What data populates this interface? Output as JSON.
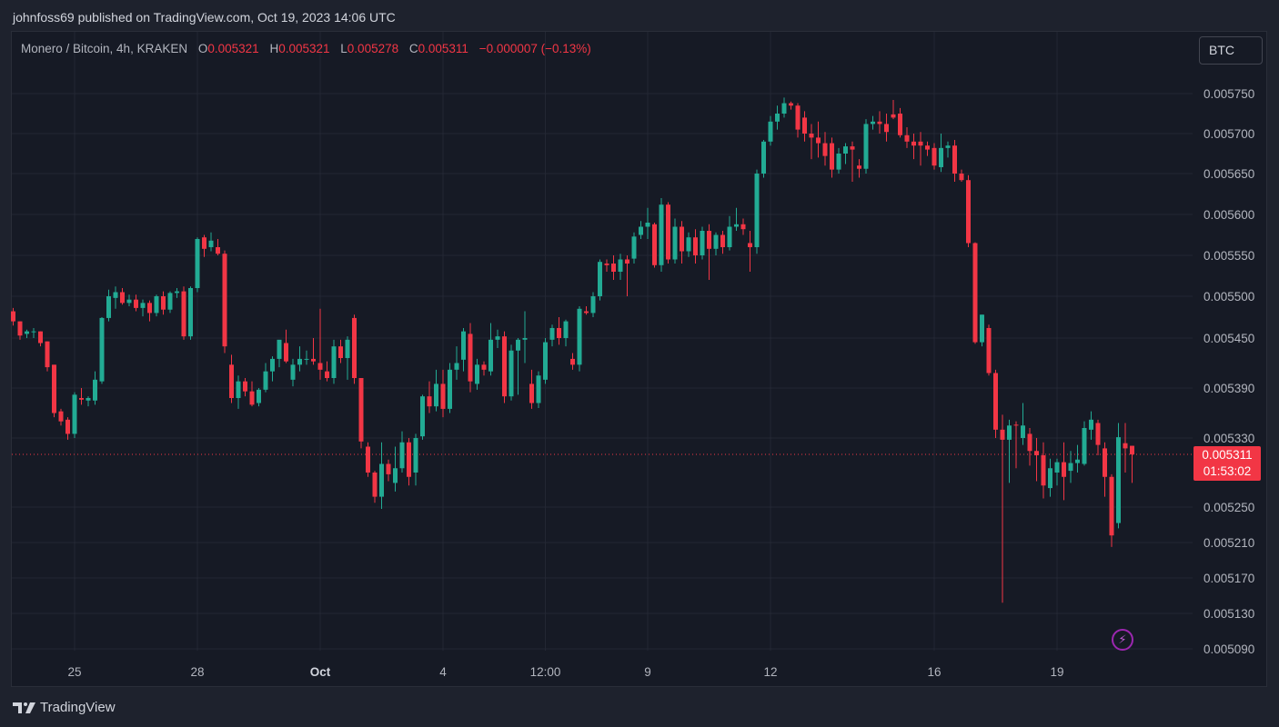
{
  "publisher_line": "johnfoss69 published on TradingView.com, Oct 19, 2023 14:06 UTC",
  "legend": {
    "symbol": "Monero / Bitcoin, 4h, KRAKEN",
    "open_label": "O",
    "open_value": "0.005321",
    "high_label": "H",
    "high_value": "0.005321",
    "low_label": "L",
    "low_value": "0.005278",
    "close_label": "C",
    "close_value": "0.005311",
    "change": "−0.000007 (−0.13%)"
  },
  "currency_chip": "BTC",
  "brand": "TradingView",
  "last_price": {
    "price": "0.005311",
    "countdown": "01:53:02"
  },
  "colors": {
    "up": "#22ab94",
    "down": "#f23645",
    "grid": "#232733",
    "text": "#b2b5be",
    "last_price_line": "#f23645",
    "flash": "#9c27b0"
  },
  "icons": {
    "flash": "lightning-icon",
    "brand_logo": "tradingview-logo-icon"
  },
  "chart_data": {
    "type": "candlestick",
    "timeframe": "4h",
    "y_ticks": [
      "0.005750",
      "0.005700",
      "0.005650",
      "0.005600",
      "0.005550",
      "0.005500",
      "0.005450",
      "0.005390",
      "0.005330",
      "0.005250",
      "0.005210",
      "0.005170",
      "0.005130",
      "0.005090"
    ],
    "x_ticks": [
      {
        "label": "25",
        "index": 9,
        "bold": false
      },
      {
        "label": "28",
        "index": 27,
        "bold": false
      },
      {
        "label": "Oct",
        "index": 45,
        "bold": true
      },
      {
        "label": "4",
        "index": 63,
        "bold": false
      },
      {
        "label": "12:00",
        "index": 78,
        "bold": false
      },
      {
        "label": "9",
        "index": 93,
        "bold": false
      },
      {
        "label": "12",
        "index": 111,
        "bold": false
      },
      {
        "label": "16",
        "index": 135,
        "bold": false
      },
      {
        "label": "19",
        "index": 153,
        "bold": false
      }
    ],
    "grid": true,
    "last_price": 0.005311,
    "candles": [
      [
        0.005482,
        0.005486,
        0.005465,
        0.00547
      ],
      [
        0.00547,
        0.00547,
        0.005448,
        0.005453
      ],
      [
        0.005455,
        0.00546,
        0.00545,
        0.005458
      ],
      [
        0.005458,
        0.005462,
        0.00545,
        0.005458
      ],
      [
        0.005458,
        0.005458,
        0.00544,
        0.005444
      ],
      [
        0.005446,
        0.005446,
        0.00541,
        0.005415
      ],
      [
        0.005418,
        0.005418,
        0.005355,
        0.00536
      ],
      [
        0.005362,
        0.005365,
        0.005345,
        0.00535
      ],
      [
        0.005352,
        0.005355,
        0.005328,
        0.005335
      ],
      [
        0.005335,
        0.005385,
        0.00533,
        0.005382
      ],
      [
        0.005378,
        0.00539,
        0.00537,
        0.005376
      ],
      [
        0.005375,
        0.00538,
        0.005368,
        0.005378
      ],
      [
        0.005375,
        0.00541,
        0.00537,
        0.0054
      ],
      [
        0.005398,
        0.005475,
        0.005395,
        0.005474
      ],
      [
        0.005474,
        0.005508,
        0.00547,
        0.0055
      ],
      [
        0.005498,
        0.005512,
        0.005485,
        0.005505
      ],
      [
        0.005505,
        0.00551,
        0.00549,
        0.005492
      ],
      [
        0.005492,
        0.005502,
        0.005488,
        0.005496
      ],
      [
        0.005496,
        0.005502,
        0.005482,
        0.005486
      ],
      [
        0.005486,
        0.005496,
        0.005476,
        0.005492
      ],
      [
        0.005492,
        0.005495,
        0.00547,
        0.00548
      ],
      [
        0.00548,
        0.005502,
        0.005476,
        0.0055
      ],
      [
        0.0055,
        0.005506,
        0.005478,
        0.005484
      ],
      [
        0.005484,
        0.005506,
        0.00548,
        0.005504
      ],
      [
        0.005504,
        0.00551,
        0.005498,
        0.005506
      ],
      [
        0.005506,
        0.005512,
        0.005448,
        0.005452
      ],
      [
        0.005452,
        0.005512,
        0.005448,
        0.00551
      ],
      [
        0.00551,
        0.005572,
        0.005505,
        0.00557
      ],
      [
        0.005572,
        0.005575,
        0.005548,
        0.005558
      ],
      [
        0.00556,
        0.005578,
        0.005555,
        0.005568
      ],
      [
        0.00556,
        0.00557,
        0.00555,
        0.005552
      ],
      [
        0.005552,
        0.005556,
        0.005432,
        0.00544
      ],
      [
        0.005418,
        0.00543,
        0.005372,
        0.005378
      ],
      [
        0.005378,
        0.005405,
        0.005365,
        0.005398
      ],
      [
        0.005398,
        0.005402,
        0.00538,
        0.005386
      ],
      [
        0.005386,
        0.005398,
        0.005368,
        0.00537
      ],
      [
        0.005372,
        0.00539,
        0.005368,
        0.005388
      ],
      [
        0.005388,
        0.00542,
        0.005385,
        0.00541
      ],
      [
        0.00541,
        0.005428,
        0.005398,
        0.005425
      ],
      [
        0.005425,
        0.005445,
        0.005415,
        0.005448
      ],
      [
        0.005444,
        0.00546,
        0.00542,
        0.005422
      ],
      [
        0.0054,
        0.005425,
        0.005392,
        0.005418
      ],
      [
        0.005418,
        0.00544,
        0.00541,
        0.005425
      ],
      [
        0.005425,
        0.005435,
        0.005418,
        0.005425
      ],
      [
        0.005425,
        0.00545,
        0.005418,
        0.005422
      ],
      [
        0.00542,
        0.005485,
        0.0054,
        0.005412
      ],
      [
        0.00541,
        0.005422,
        0.005398,
        0.005402
      ],
      [
        0.005402,
        0.005448,
        0.005395,
        0.00544
      ],
      [
        0.00544,
        0.005448,
        0.00542,
        0.005426
      ],
      [
        0.005426,
        0.005452,
        0.0054,
        0.005448
      ],
      [
        0.005474,
        0.005478,
        0.005395,
        0.005402
      ],
      [
        0.005402,
        0.005402,
        0.005318,
        0.005326
      ],
      [
        0.00532,
        0.005325,
        0.005285,
        0.00529
      ],
      [
        0.00529,
        0.005292,
        0.005255,
        0.005262
      ],
      [
        0.005262,
        0.005325,
        0.005248,
        0.0053
      ],
      [
        0.0053,
        0.005305,
        0.00528,
        0.005288
      ],
      [
        0.005278,
        0.00532,
        0.005268,
        0.005295
      ],
      [
        0.005295,
        0.005338,
        0.00529,
        0.005325
      ],
      [
        0.005325,
        0.00533,
        0.005275,
        0.005285
      ],
      [
        0.00529,
        0.005335,
        0.005275,
        0.00533
      ],
      [
        0.005332,
        0.005382,
        0.005328,
        0.00538
      ],
      [
        0.00538,
        0.005398,
        0.00536,
        0.005368
      ],
      [
        0.005368,
        0.005412,
        0.005362,
        0.005395
      ],
      [
        0.005395,
        0.005412,
        0.005355,
        0.005365
      ],
      [
        0.005365,
        0.00542,
        0.00536,
        0.005412
      ],
      [
        0.005412,
        0.00544,
        0.0054,
        0.00542
      ],
      [
        0.005424,
        0.005462,
        0.00541,
        0.005458
      ],
      [
        0.005455,
        0.005468,
        0.005385,
        0.005398
      ],
      [
        0.005395,
        0.005425,
        0.005388,
        0.005418
      ],
      [
        0.005418,
        0.005422,
        0.005405,
        0.005412
      ],
      [
        0.00541,
        0.005468,
        0.005405,
        0.005448
      ],
      [
        0.005448,
        0.00546,
        0.005438,
        0.005452
      ],
      [
        0.005452,
        0.005458,
        0.005372,
        0.00538
      ],
      [
        0.00538,
        0.005442,
        0.005375,
        0.005435
      ],
      [
        0.005435,
        0.00545,
        0.005382,
        0.005448
      ],
      [
        0.005448,
        0.005482,
        0.00542,
        0.00545
      ],
      [
        0.005395,
        0.005412,
        0.005365,
        0.005372
      ],
      [
        0.005372,
        0.00541,
        0.005366,
        0.005405
      ],
      [
        0.0054,
        0.00545,
        0.005395,
        0.005445
      ],
      [
        0.005448,
        0.005466,
        0.00544,
        0.005462
      ],
      [
        0.005462,
        0.005475,
        0.005442,
        0.00545
      ],
      [
        0.00545,
        0.005472,
        0.00544,
        0.00547
      ],
      [
        0.005425,
        0.005432,
        0.005412,
        0.005418
      ],
      [
        0.005418,
        0.005488,
        0.00541,
        0.005485
      ],
      [
        0.005482,
        0.005488,
        0.005478,
        0.00548
      ],
      [
        0.00548,
        0.005505,
        0.005475,
        0.0055
      ],
      [
        0.0055,
        0.005545,
        0.005495,
        0.005542
      ],
      [
        0.00554,
        0.005545,
        0.00553,
        0.005538
      ],
      [
        0.00554,
        0.00555,
        0.00552,
        0.00553
      ],
      [
        0.00553,
        0.005552,
        0.00552,
        0.005545
      ],
      [
        0.005545,
        0.00555,
        0.0055,
        0.00554
      ],
      [
        0.005546,
        0.005578,
        0.00554,
        0.005573
      ],
      [
        0.005575,
        0.005592,
        0.00557,
        0.005585
      ],
      [
        0.005585,
        0.005608,
        0.00557,
        0.00559
      ],
      [
        0.005588,
        0.00559,
        0.005535,
        0.005538
      ],
      [
        0.005538,
        0.00562,
        0.00553,
        0.005612
      ],
      [
        0.005612,
        0.005615,
        0.00554,
        0.005545
      ],
      [
        0.005545,
        0.005595,
        0.00554,
        0.005585
      ],
      [
        0.005585,
        0.005592,
        0.00554,
        0.005555
      ],
      [
        0.005555,
        0.005578,
        0.005548,
        0.005572
      ],
      [
        0.005572,
        0.005582,
        0.00554,
        0.00555
      ],
      [
        0.00555,
        0.005585,
        0.005545,
        0.00558
      ],
      [
        0.00558,
        0.005588,
        0.00552,
        0.005558
      ],
      [
        0.005558,
        0.005578,
        0.00555,
        0.005575
      ],
      [
        0.005575,
        0.00558,
        0.005552,
        0.00556
      ],
      [
        0.00556,
        0.005598,
        0.005556,
        0.005585
      ],
      [
        0.005585,
        0.005608,
        0.00558,
        0.005588
      ],
      [
        0.005588,
        0.005595,
        0.005575,
        0.005582
      ],
      [
        0.005565,
        0.00558,
        0.00553,
        0.00556
      ],
      [
        0.00556,
        0.005655,
        0.005552,
        0.00565
      ],
      [
        0.00565,
        0.005692,
        0.005645,
        0.00569
      ],
      [
        0.00569,
        0.005722,
        0.005685,
        0.005715
      ],
      [
        0.005715,
        0.005735,
        0.005705,
        0.005725
      ],
      [
        0.005725,
        0.005745,
        0.00572,
        0.005738
      ],
      [
        0.005738,
        0.00574,
        0.00573,
        0.005735
      ],
      [
        0.005735,
        0.005738,
        0.005695,
        0.005705
      ],
      [
        0.00572,
        0.005728,
        0.00569,
        0.0057
      ],
      [
        0.0057,
        0.005712,
        0.005668,
        0.005695
      ],
      [
        0.005695,
        0.005715,
        0.00567,
        0.005688
      ],
      [
        0.005688,
        0.005702,
        0.00566,
        0.005672
      ],
      [
        0.005688,
        0.005695,
        0.005645,
        0.005655
      ],
      [
        0.005655,
        0.005682,
        0.00565,
        0.005675
      ],
      [
        0.005675,
        0.005688,
        0.005662,
        0.005684
      ],
      [
        0.005684,
        0.00569,
        0.00564,
        0.00568
      ],
      [
        0.00566,
        0.005668,
        0.005645,
        0.005656
      ],
      [
        0.005656,
        0.005718,
        0.00565,
        0.005712
      ],
      [
        0.005712,
        0.005722,
        0.005705,
        0.005715
      ],
      [
        0.005715,
        0.005728,
        0.0057,
        0.005712
      ],
      [
        0.005712,
        0.005725,
        0.00569,
        0.005702
      ],
      [
        0.005724,
        0.005742,
        0.005718,
        0.00572
      ],
      [
        0.005725,
        0.005732,
        0.005695,
        0.005698
      ],
      [
        0.005698,
        0.005708,
        0.005682,
        0.00569
      ],
      [
        0.00569,
        0.0057,
        0.005668,
        0.005685
      ],
      [
        0.00569,
        0.005702,
        0.00566,
        0.005685
      ],
      [
        0.005685,
        0.00569,
        0.005672,
        0.00568
      ],
      [
        0.005682,
        0.005688,
        0.005655,
        0.00566
      ],
      [
        0.005658,
        0.0057,
        0.005652,
        0.005682
      ],
      [
        0.005682,
        0.00569,
        0.00567,
        0.005685
      ],
      [
        0.005685,
        0.005692,
        0.00564,
        0.00565
      ],
      [
        0.00565,
        0.005655,
        0.00564,
        0.005642
      ],
      [
        0.005642,
        0.005648,
        0.00556,
        0.005565
      ],
      [
        0.005565,
        0.005566,
        0.005443,
        0.005445
      ],
      [
        0.005445,
        0.005478,
        0.00544,
        0.005478
      ],
      [
        0.005462,
        0.005466,
        0.005405,
        0.005408
      ],
      [
        0.005408,
        0.005412,
        0.00533,
        0.00534
      ],
      [
        0.00534,
        0.005358,
        0.005142,
        0.005328
      ],
      [
        0.005328,
        0.005352,
        0.005278,
        0.005345
      ],
      [
        0.005346,
        0.00535,
        0.005295,
        0.005345
      ],
      [
        0.00533,
        0.005372,
        0.005322,
        0.005345
      ],
      [
        0.005335,
        0.005342,
        0.005298,
        0.005315
      ],
      [
        0.005315,
        0.00533,
        0.00528,
        0.00531
      ],
      [
        0.00531,
        0.005325,
        0.00526,
        0.005275
      ],
      [
        0.005272,
        0.005306,
        0.005262,
        0.005295
      ],
      [
        0.00529,
        0.005306,
        0.005275,
        0.005302
      ],
      [
        0.005302,
        0.005325,
        0.005258,
        0.005285
      ],
      [
        0.005292,
        0.005315,
        0.005278,
        0.005301
      ],
      [
        0.005301,
        0.005322,
        0.00529,
        0.005305
      ],
      [
        0.0053,
        0.00535,
        0.005298,
        0.005342
      ],
      [
        0.00534,
        0.005362,
        0.005328,
        0.005352
      ],
      [
        0.005348,
        0.005352,
        0.00531,
        0.005322
      ],
      [
        0.005318,
        0.005325,
        0.005262,
        0.005285
      ],
      [
        0.005285,
        0.005288,
        0.005205,
        0.005218
      ],
      [
        0.005232,
        0.005348,
        0.005226,
        0.005331
      ],
      [
        0.005324,
        0.005348,
        0.00529,
        0.005318
      ],
      [
        0.005321,
        0.005321,
        0.005278,
        0.005311
      ]
    ]
  }
}
